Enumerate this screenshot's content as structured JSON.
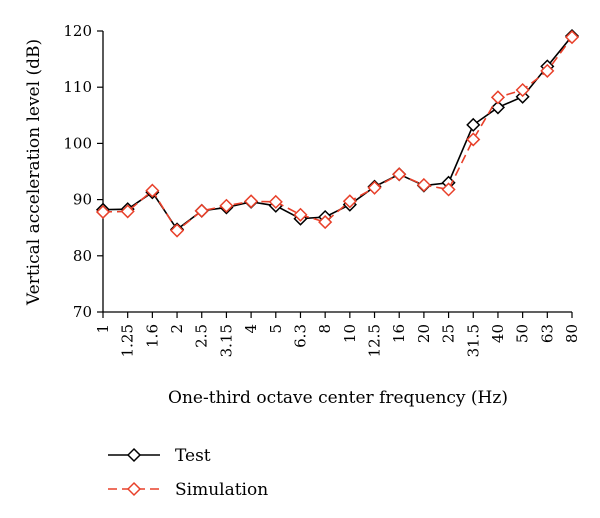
{
  "chart_data": {
    "type": "line",
    "title": "",
    "xlabel": "One-third octave center frequency (Hz)",
    "ylabel": "Vertical acceleration level (dB)",
    "categories": [
      "1",
      "1.25",
      "1.6",
      "2",
      "2.5",
      "3.15",
      "4",
      "5",
      "6.3",
      "8",
      "10",
      "12.5",
      "16",
      "20",
      "25",
      "31.5",
      "40",
      "50",
      "63",
      "80"
    ],
    "ylim": [
      70,
      120
    ],
    "yticks": [
      70,
      80,
      90,
      100,
      110,
      120
    ],
    "grid": false,
    "legend_position": "bottom-left",
    "series": [
      {
        "name": "Test",
        "color": "#000000",
        "line_style": "solid",
        "marker": "diamond",
        "values": [
          88.2,
          88.3,
          91.3,
          84.7,
          88.0,
          88.6,
          89.6,
          88.9,
          86.6,
          86.9,
          89.1,
          92.3,
          94.5,
          92.5,
          93.0,
          103.3,
          106.4,
          108.3,
          113.7,
          119.1
        ]
      },
      {
        "name": "Simulation",
        "color": "#e8402a",
        "line_style": "dashed",
        "marker": "diamond",
        "values": [
          87.8,
          87.9,
          91.6,
          84.5,
          88.0,
          88.9,
          89.7,
          89.6,
          87.3,
          86.0,
          89.7,
          92.1,
          94.5,
          92.6,
          91.8,
          100.7,
          108.2,
          109.5,
          112.9,
          118.9
        ]
      }
    ]
  }
}
